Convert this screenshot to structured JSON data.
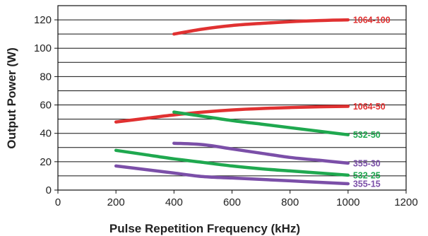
{
  "chart_data": {
    "type": "line",
    "title": "",
    "xlabel": "Pulse Repetition Frequency (kHz)",
    "ylabel": "Output Power (W)",
    "xlim": [
      0,
      1200
    ],
    "ylim": [
      0,
      130
    ],
    "xticks": [
      "0",
      "200",
      "400",
      "600",
      "800",
      "1000",
      "1200"
    ],
    "yticks": [
      "0",
      "20",
      "40",
      "60",
      "80",
      "100",
      "120"
    ],
    "grid": "horizontal",
    "legend": "labels at right end of each line",
    "series": [
      {
        "name": "1064-100",
        "color": "#e03131",
        "x": [
          400,
          500,
          600,
          700,
          800,
          900,
          1000
        ],
        "y": [
          110,
          113.5,
          116,
          117.5,
          118.7,
          119.5,
          120
        ]
      },
      {
        "name": "1064-50",
        "color": "#e03131",
        "x": [
          200,
          300,
          400,
          500,
          600,
          700,
          800,
          900,
          1000
        ],
        "y": [
          48,
          50.5,
          53,
          55,
          56.5,
          57.5,
          58.2,
          58.7,
          59
        ]
      },
      {
        "name": "532-50",
        "color": "#1fa84f",
        "x": [
          400,
          500,
          600,
          700,
          800,
          900,
          1000
        ],
        "y": [
          55,
          52,
          49,
          46.5,
          44,
          41.5,
          39
        ]
      },
      {
        "name": "355-30",
        "color": "#7b4fa8",
        "x": [
          400,
          500,
          600,
          700,
          800,
          900,
          1000
        ],
        "y": [
          33,
          32,
          29,
          26,
          23,
          21,
          19
        ]
      },
      {
        "name": "532-25",
        "color": "#1fa84f",
        "x": [
          200,
          300,
          400,
          500,
          600,
          700,
          800,
          900,
          1000
        ],
        "y": [
          28,
          25,
          22,
          19.5,
          17,
          15,
          13.5,
          12,
          10.5
        ]
      },
      {
        "name": "355-15",
        "color": "#7b4fa8",
        "x": [
          200,
          300,
          400,
          500,
          600,
          700,
          800,
          900,
          1000
        ],
        "y": [
          17,
          14.5,
          12,
          9.5,
          8.5,
          7.5,
          6.5,
          5.5,
          4.5
        ]
      }
    ]
  }
}
